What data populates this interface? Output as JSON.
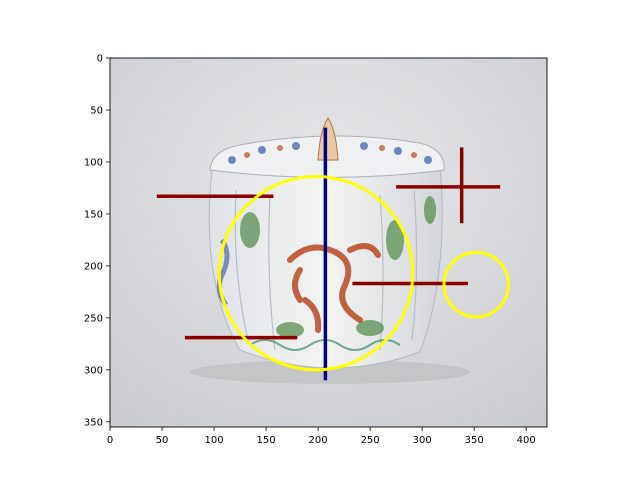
{
  "chart_data": {
    "type": "image",
    "xlim": [
      0,
      420
    ],
    "ylim": [
      355,
      0
    ],
    "x_ticks": [
      0,
      50,
      100,
      150,
      200,
      250,
      300,
      350,
      400
    ],
    "y_ticks": [
      0,
      50,
      100,
      150,
      200,
      250,
      300,
      350
    ],
    "image": {
      "subject": "lidded porcelain box with red and green dragon decoration",
      "background_color": "#d6d7d9"
    },
    "overlays": [
      {
        "kind": "hline",
        "y": 133,
        "x0": 45,
        "x1": 157,
        "color": "#8b0000"
      },
      {
        "kind": "hline",
        "y": 124,
        "x0": 275,
        "x1": 375,
        "color": "#8b0000"
      },
      {
        "kind": "vline",
        "x": 338,
        "y0": 86,
        "y1": 159,
        "color": "#8b0000"
      },
      {
        "kind": "hline",
        "y": 217,
        "x0": 233,
        "x1": 344,
        "color": "#8b0000"
      },
      {
        "kind": "hline",
        "y": 269,
        "x0": 72,
        "x1": 180,
        "color": "#8b0000"
      },
      {
        "kind": "vline",
        "x": 207,
        "y0": 67,
        "y1": 310,
        "color": "#000080"
      },
      {
        "kind": "circle",
        "cx": 198,
        "cy": 207,
        "r": 93,
        "color": "#ffff00"
      },
      {
        "kind": "circle",
        "cx": 352,
        "cy": 218,
        "r": 31,
        "color": "#ffff00"
      }
    ]
  }
}
